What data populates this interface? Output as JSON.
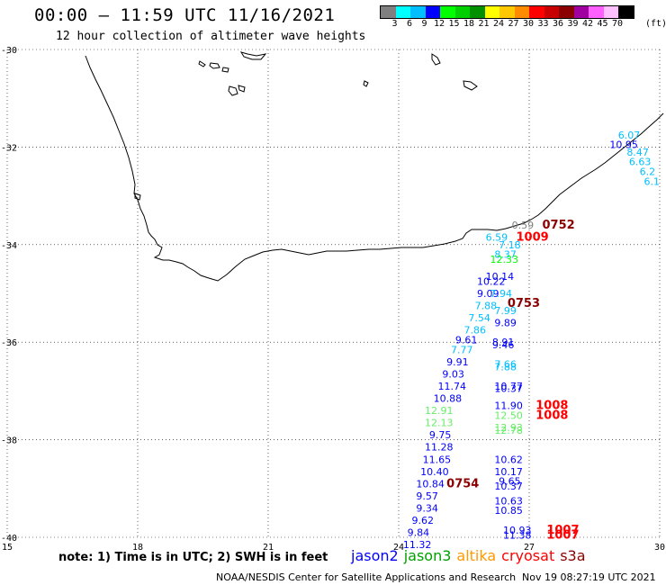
{
  "header": {
    "title": "00:00 – 11:59 UTC 11/16/2021",
    "subtitle": "12 hour collection of altimeter wave heights"
  },
  "colorbar": {
    "colors": [
      "#808080",
      "#00ffff",
      "#00bfff",
      "#0000ff",
      "#00ff00",
      "#00d000",
      "#009000",
      "#ffff00",
      "#ffc800",
      "#ff8c00",
      "#ff0000",
      "#c80000",
      "#8b0000",
      "#a000a0",
      "#ff60ff",
      "#ffc0ff",
      "#000000"
    ],
    "labels": [
      "3",
      "6",
      "9",
      "12",
      "15",
      "18",
      "21",
      "24",
      "27",
      "30",
      "33",
      "36",
      "39",
      "42",
      "45",
      "70"
    ],
    "unit": "(ft)"
  },
  "map": {
    "lon_ticks": [
      "15",
      "18",
      "21",
      "24",
      "27",
      "30"
    ],
    "lat_ticks": [
      "-30",
      "-32",
      "-34",
      "-36",
      "-38",
      "-40"
    ],
    "lon_range": [
      15,
      30
    ],
    "lat_range": [
      -40,
      -30
    ]
  },
  "observations": [
    {
      "t": "0.59",
      "c": "#808080",
      "lon": 26.6,
      "lat": -33.6
    },
    {
      "t": "0752",
      "c": "#8b0000",
      "lon": 27.3,
      "lat": -33.6,
      "big": true
    },
    {
      "t": "6.59",
      "c": "#00bfff",
      "lon": 26.0,
      "lat": -33.85
    },
    {
      "t": "1009",
      "c": "#ff0000",
      "lon": 26.7,
      "lat": -33.85,
      "big": true
    },
    {
      "t": "7.18",
      "c": "#00bfff",
      "lon": 26.3,
      "lat": -34.0
    },
    {
      "t": "8.37",
      "c": "#00bfff",
      "lon": 26.2,
      "lat": -34.2
    },
    {
      "t": "12.33",
      "c": "#00ff00",
      "lon": 26.1,
      "lat": -34.3
    },
    {
      "t": "10.14",
      "c": "#0000ff",
      "lon": 26.0,
      "lat": -34.65
    },
    {
      "t": "10.22",
      "c": "#0000ff",
      "lon": 25.8,
      "lat": -34.75
    },
    {
      "t": "9.09",
      "c": "#0000ff",
      "lon": 25.8,
      "lat": -35.0
    },
    {
      "t": "7.94",
      "c": "#00bfff",
      "lon": 26.1,
      "lat": -35.0
    },
    {
      "t": "0753",
      "c": "#8b0000",
      "lon": 26.5,
      "lat": -35.2,
      "big": true
    },
    {
      "t": "7.88",
      "c": "#00bfff",
      "lon": 25.75,
      "lat": -35.25
    },
    {
      "t": "7.99",
      "c": "#00bfff",
      "lon": 26.2,
      "lat": -35.35
    },
    {
      "t": "7.54",
      "c": "#00bfff",
      "lon": 25.6,
      "lat": -35.5
    },
    {
      "t": "9.89",
      "c": "#0000ff",
      "lon": 26.2,
      "lat": -35.6
    },
    {
      "t": "7.86",
      "c": "#00bfff",
      "lon": 25.5,
      "lat": -35.75
    },
    {
      "t": "9.61",
      "c": "#0000ff",
      "lon": 25.3,
      "lat": -35.95
    },
    {
      "t": "8.91",
      "c": "#0000ff",
      "lon": 26.15,
      "lat": -36.0
    },
    {
      "t": "9.46",
      "c": "#0000ff",
      "lon": 26.15,
      "lat": -36.05
    },
    {
      "t": "7.77",
      "c": "#00bfff",
      "lon": 25.2,
      "lat": -36.15
    },
    {
      "t": "9.91",
      "c": "#0000ff",
      "lon": 25.1,
      "lat": -36.4
    },
    {
      "t": "7.66",
      "c": "#00bfff",
      "lon": 26.2,
      "lat": -36.45
    },
    {
      "t": "7.88",
      "c": "#00bfff",
      "lon": 26.2,
      "lat": -36.5
    },
    {
      "t": "9.03",
      "c": "#0000ff",
      "lon": 25.0,
      "lat": -36.65
    },
    {
      "t": "11.74",
      "c": "#0000ff",
      "lon": 24.9,
      "lat": -36.9
    },
    {
      "t": "10.77",
      "c": "#0000ff",
      "lon": 26.2,
      "lat": -36.9
    },
    {
      "t": "10.37",
      "c": "#0000ff",
      "lon": 26.2,
      "lat": -36.95
    },
    {
      "t": "10.88",
      "c": "#0000ff",
      "lon": 24.8,
      "lat": -37.15
    },
    {
      "t": "11.90",
      "c": "#0000ff",
      "lon": 26.2,
      "lat": -37.3
    },
    {
      "t": "1008",
      "c": "#ff0000",
      "lon": 27.15,
      "lat": -37.3,
      "big": true
    },
    {
      "t": "12.91",
      "c": "#66ee66",
      "lon": 24.6,
      "lat": -37.4
    },
    {
      "t": "12.50",
      "c": "#66ee66",
      "lon": 26.2,
      "lat": -37.5
    },
    {
      "t": "1008",
      "c": "#ff0000",
      "lon": 27.15,
      "lat": -37.5,
      "big": true
    },
    {
      "t": "12.13",
      "c": "#66ee66",
      "lon": 24.6,
      "lat": -37.65
    },
    {
      "t": "12.93",
      "c": "#66ee66",
      "lon": 26.2,
      "lat": -37.75
    },
    {
      "t": "12.78",
      "c": "#66ee66",
      "lon": 26.2,
      "lat": -37.8
    },
    {
      "t": "9.75",
      "c": "#0000ff",
      "lon": 24.7,
      "lat": -37.9
    },
    {
      "t": "11.28",
      "c": "#0000ff",
      "lon": 24.6,
      "lat": -38.15
    },
    {
      "t": "11.65",
      "c": "#0000ff",
      "lon": 24.55,
      "lat": -38.4
    },
    {
      "t": "10.62",
      "c": "#0000ff",
      "lon": 26.2,
      "lat": -38.4
    },
    {
      "t": "10.40",
      "c": "#0000ff",
      "lon": 24.5,
      "lat": -38.65
    },
    {
      "t": "10.17",
      "c": "#0000ff",
      "lon": 26.2,
      "lat": -38.65
    },
    {
      "t": "10.84",
      "c": "#0000ff",
      "lon": 24.4,
      "lat": -38.9
    },
    {
      "t": "0754",
      "c": "#8b0000",
      "lon": 25.1,
      "lat": -38.9,
      "big": true
    },
    {
      "t": "9.65",
      "c": "#0000ff",
      "lon": 26.3,
      "lat": -38.85
    },
    {
      "t": "10.37",
      "c": "#0000ff",
      "lon": 26.2,
      "lat": -38.95
    },
    {
      "t": "9.57",
      "c": "#0000ff",
      "lon": 24.4,
      "lat": -39.15
    },
    {
      "t": "10.63",
      "c": "#0000ff",
      "lon": 26.2,
      "lat": -39.25
    },
    {
      "t": "9.34",
      "c": "#0000ff",
      "lon": 24.4,
      "lat": -39.4
    },
    {
      "t": "10.85",
      "c": "#0000ff",
      "lon": 26.2,
      "lat": -39.45
    },
    {
      "t": "9.62",
      "c": "#0000ff",
      "lon": 24.3,
      "lat": -39.65
    },
    {
      "t": "10.93",
      "c": "#0000ff",
      "lon": 26.4,
      "lat": -39.85
    },
    {
      "t": "1007",
      "c": "#ff0000",
      "lon": 27.4,
      "lat": -39.85,
      "big": true
    },
    {
      "t": "9.84",
      "c": "#0000ff",
      "lon": 24.2,
      "lat": -39.9
    },
    {
      "t": "11.38",
      "c": "#0000ff",
      "lon": 26.4,
      "lat": -39.95
    },
    {
      "t": "1007",
      "c": "#ff0000",
      "lon": 27.4,
      "lat": -39.95,
      "big": true
    },
    {
      "t": "11.32",
      "c": "#0000ff",
      "lon": 24.1,
      "lat": -40.15
    },
    {
      "t": "6.07",
      "c": "#00bfff",
      "lon": 29.55,
      "lat": -31.75
    },
    {
      "t": "10.95",
      "c": "#0000ff",
      "lon": 29.5,
      "lat": -31.95
    },
    {
      "t": "8.47",
      "c": "#00bfff",
      "lon": 29.75,
      "lat": -32.1
    },
    {
      "t": "6.63",
      "c": "#00bfff",
      "lon": 29.8,
      "lat": -32.3
    },
    {
      "t": "6.2",
      "c": "#00bfff",
      "lon": 29.9,
      "lat": -32.5
    },
    {
      "t": "6.1",
      "c": "#00bfff",
      "lon": 30.0,
      "lat": -32.7
    }
  ],
  "footer": {
    "note": "note: 1) Time is in UTC; 2) SWH is in feet",
    "legend": [
      {
        "label": "jason2",
        "color": "#0000ff"
      },
      {
        "label": "jason3",
        "color": "#00a000"
      },
      {
        "label": "altika",
        "color": "#ff9900"
      },
      {
        "label": "cryosat",
        "color": "#ff0000"
      },
      {
        "label": "s3a",
        "color": "#8b0000"
      }
    ],
    "credit": "NOAA/NESDIS Center for Satellite Applications and Research",
    "stamp": "Nov 19 08:27:19 UTC 2021"
  }
}
